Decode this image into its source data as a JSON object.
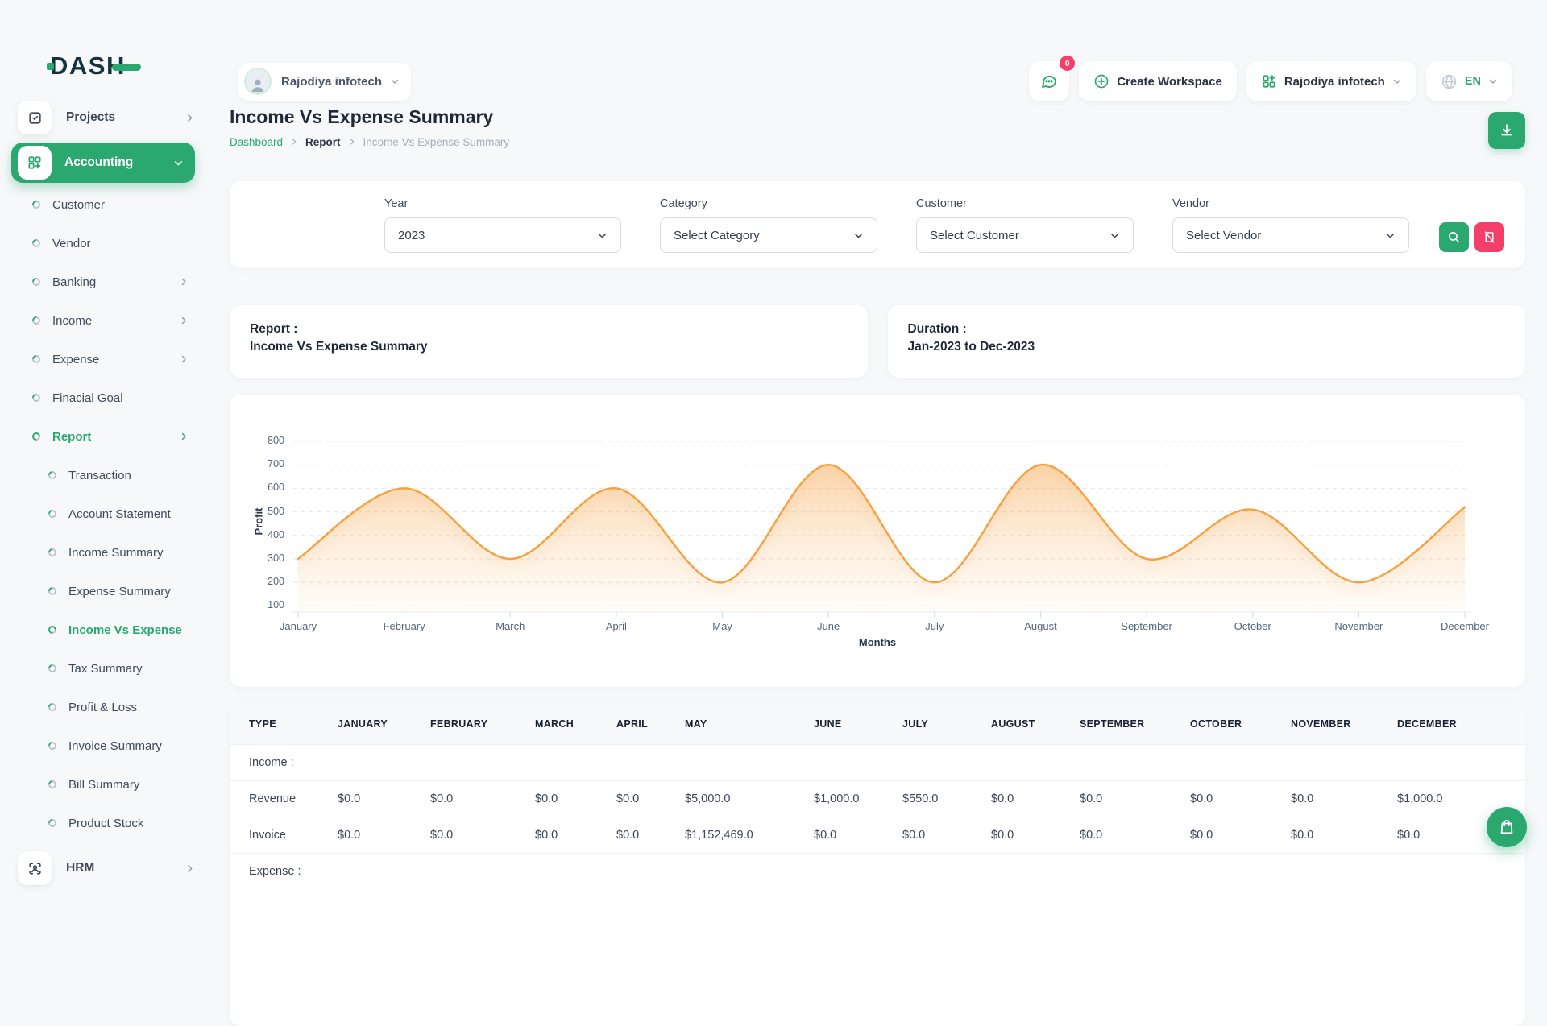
{
  "brand": {
    "logo": "DASH"
  },
  "sidebar": {
    "projects": {
      "label": "Projects"
    },
    "accounting": {
      "label": "Accounting"
    },
    "accounting_children": [
      {
        "label": "Customer"
      },
      {
        "label": "Vendor"
      },
      {
        "label": "Banking"
      },
      {
        "label": "Income"
      },
      {
        "label": "Expense"
      },
      {
        "label": "Finacial Goal"
      },
      {
        "label": "Report"
      }
    ],
    "report_children": [
      {
        "label": "Transaction"
      },
      {
        "label": "Account Statement"
      },
      {
        "label": "Income Summary"
      },
      {
        "label": "Expense Summary"
      },
      {
        "label": "Income Vs Expense"
      },
      {
        "label": "Tax Summary"
      },
      {
        "label": "Profit & Loss"
      },
      {
        "label": "Invoice Summary"
      },
      {
        "label": "Bill Summary"
      },
      {
        "label": "Product Stock"
      }
    ],
    "hrm": {
      "label": "HRM"
    }
  },
  "topbar": {
    "company": "Rajodiya infotech",
    "messages_badge": "0",
    "create_workspace": "Create Workspace",
    "workspace": "Rajodiya infotech",
    "language": "EN"
  },
  "page": {
    "title": "Income Vs Expense Summary",
    "breadcrumb": [
      "Dashboard",
      "Report",
      "Income Vs Expense Summary"
    ]
  },
  "filters": {
    "year": {
      "label": "Year",
      "value": "2023"
    },
    "category": {
      "label": "Category",
      "value": "Select Category"
    },
    "customer": {
      "label": "Customer",
      "value": "Select Customer"
    },
    "vendor": {
      "label": "Vendor",
      "value": "Select Vendor"
    }
  },
  "report_card": {
    "label": "Report :",
    "value": "Income Vs Expense Summary"
  },
  "duration_card": {
    "label": "Duration :",
    "value": "Jan-2023 to Dec-2023"
  },
  "chart_data": {
    "type": "area",
    "x": [
      "January",
      "February",
      "March",
      "April",
      "May",
      "June",
      "July",
      "August",
      "September",
      "October",
      "November",
      "December"
    ],
    "values": [
      300,
      600,
      300,
      600,
      200,
      700,
      200,
      700,
      300,
      510,
      200,
      520
    ],
    "yticks": [
      800,
      700,
      600,
      500,
      400,
      300,
      200,
      100
    ],
    "ylim": [
      100,
      800
    ],
    "xlabel": "Months",
    "ylabel": "Profit",
    "grid": "dashed horizontal",
    "legend": "none",
    "line_color": "#F6A243"
  },
  "table": {
    "headers": [
      "TYPE",
      "JANUARY",
      "FEBRUARY",
      "MARCH",
      "APRIL",
      "MAY",
      "JUNE",
      "JULY",
      "AUGUST",
      "SEPTEMBER",
      "OCTOBER",
      "NOVEMBER",
      "DECEMBER"
    ],
    "sections": [
      {
        "label": "Income :",
        "rows": [
          {
            "type": "Revenue",
            "values": [
              "$0.0",
              "$0.0",
              "$0.0",
              "$0.0",
              "$5,000.0",
              "$1,000.0",
              "$550.0",
              "$0.0",
              "$0.0",
              "$0.0",
              "$0.0",
              "$1,000.0"
            ]
          },
          {
            "type": "Invoice",
            "values": [
              "$0.0",
              "$0.0",
              "$0.0",
              "$0.0",
              "$1,152,469.0",
              "$0.0",
              "$0.0",
              "$0.0",
              "$0.0",
              "$0.0",
              "$0.0",
              "$0.0"
            ]
          }
        ]
      },
      {
        "label": "Expense :",
        "rows": []
      }
    ]
  },
  "colors": {
    "accent_green": "#2aa870",
    "accent_pink": "#f43f6b",
    "chart_orange": "#F6A243"
  }
}
